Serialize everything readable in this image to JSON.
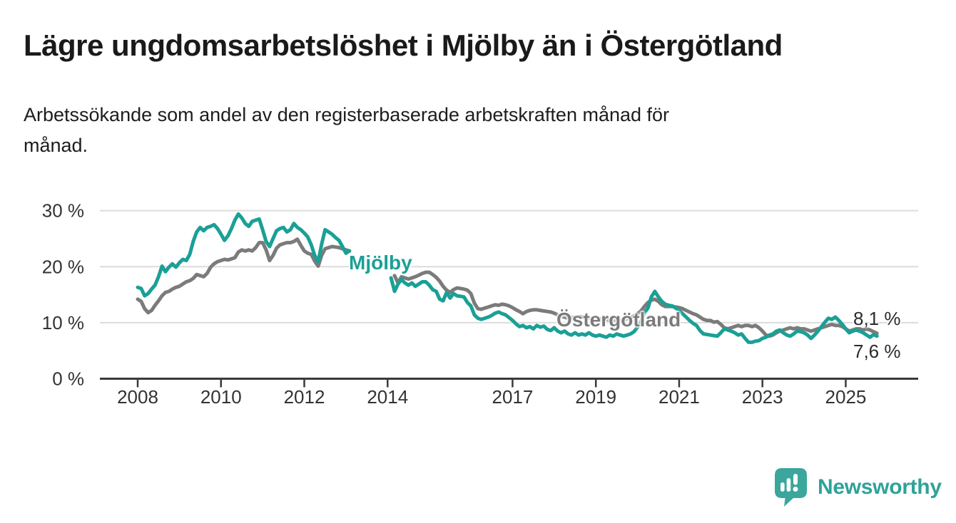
{
  "header": {
    "title": "Lägre ungdomsarbetslöshet i Mjölby än i Östergötland",
    "subtitle_full": "Arbetssökande som andel av den registerbaserade arbetskraften månad för månad.",
    "subtitle_lines": {
      "line1": "Arbetssökande som andel av den registerbaserade arbetskraften månad för",
      "line2": "månad."
    }
  },
  "chart_data": {
    "type": "line",
    "title": "Lägre ungdomsarbetslöshet i Mjölby än i Östergötland",
    "unit": "%",
    "x_axis": {
      "ticks": [
        2008,
        2010,
        2012,
        2014,
        2017,
        2019,
        2021,
        2023,
        2025
      ],
      "range": [
        2007.1,
        2026.7
      ],
      "grid": false
    },
    "y_axis": {
      "ticks": [
        {
          "value": 0,
          "label": "0 %"
        },
        {
          "value": 10,
          "label": "10 %"
        },
        {
          "value": 20,
          "label": "20 %"
        },
        {
          "value": 30,
          "label": "30 %"
        }
      ],
      "range": [
        0,
        31.5
      ],
      "grid": true
    },
    "colors": {
      "mjolby": "#1aa096",
      "ostergotland": "#7b7b7b",
      "axis": "#3a3a3a",
      "grid": "#dcdcdc"
    },
    "series": [
      {
        "name": "Östergötland",
        "color": "#7b7b7b",
        "final_value": 8.1,
        "final_label": "8,1 %",
        "segments": [
          {
            "start_year": 2008,
            "start_month": 1,
            "monthly_values": [
              14.2,
              13.8,
              12.5,
              11.8,
              12.2,
              13.1,
              13.9,
              14.8,
              15.4,
              15.6,
              16.0,
              16.3,
              16.5,
              16.9,
              17.3,
              17.5,
              17.9,
              18.6,
              18.4,
              18.2,
              18.8,
              19.9,
              20.5,
              20.9,
              21.1,
              21.3,
              21.2,
              21.4,
              21.6,
              22.6,
              23.0,
              22.8,
              23.0,
              22.8,
              23.4,
              24.3,
              24.3,
              23.0,
              21.1,
              22.0,
              23.3,
              23.9,
              24.1,
              24.3,
              24.3,
              24.5,
              24.9,
              23.8,
              22.8,
              22.4,
              22.2,
              21.0,
              20.1,
              22.0,
              23.2,
              23.4,
              23.6,
              23.5,
              23.4,
              23.2,
              23.0,
              22.8
            ]
          },
          {
            "start_year": 2014,
            "start_month": 3,
            "monthly_values": [
              18.4,
              17.1,
              18.2,
              18.0,
              17.8,
              18.0,
              18.2,
              18.5,
              18.8,
              19.0,
              19.0,
              18.6,
              18.1,
              17.4,
              16.5,
              15.8,
              15.4,
              15.9,
              16.2,
              16.1,
              16.0,
              15.8,
              15.2,
              13.5,
              12.5,
              12.4,
              12.6,
              12.8,
              13.0,
              13.2,
              13.1,
              13.3,
              13.2,
              13.0,
              12.7,
              12.3,
              12.0,
              11.6,
              12.0,
              12.2,
              12.3,
              12.3,
              12.2,
              12.1,
              12.0,
              11.9,
              11.7,
              11.4,
              11.1,
              11.0,
              10.8,
              10.9,
              11.0,
              11.1,
              11.0,
              10.9,
              10.8,
              10.8,
              10.9,
              10.7,
              10.5,
              10.6,
              10.4,
              10.5,
              10.3,
              10.4,
              10.5,
              10.7,
              10.9,
              11.2,
              11.6,
              12.1,
              12.9,
              13.6,
              14.0,
              14.2,
              13.8,
              13.2,
              12.9,
              12.9,
              12.9,
              12.8,
              12.7,
              12.5,
              12.2,
              11.9,
              11.6,
              11.4,
              11.0,
              10.6,
              10.4,
              10.4,
              10.1,
              10.2,
              9.7,
              9.1,
              8.9,
              9.1,
              9.3,
              9.5,
              9.3,
              9.5,
              9.5,
              9.3,
              9.5,
              9.1,
              8.5,
              7.8,
              7.6,
              7.8,
              8.2,
              8.5,
              8.7,
              8.9,
              9.1,
              8.9,
              9.1,
              8.9,
              8.9,
              8.7,
              8.5,
              8.7,
              8.9,
              9.1,
              9.3,
              9.5,
              9.7,
              9.5,
              9.5,
              9.3,
              8.9,
              8.5,
              8.7,
              8.9,
              8.9,
              8.7,
              8.9,
              8.7,
              8.4,
              8.1
            ]
          }
        ]
      },
      {
        "name": "Mjölby",
        "color": "#1aa096",
        "final_value": 7.6,
        "final_label": "7,6 %",
        "segments": [
          {
            "start_year": 2008,
            "start_month": 1,
            "monthly_values": [
              16.3,
              16.1,
              14.8,
              15.2,
              16.0,
              16.7,
              18.2,
              20.1,
              19.1,
              19.9,
              20.5,
              19.9,
              20.7,
              21.3,
              21.1,
              22.2,
              24.5,
              26.2,
              27.0,
              26.4,
              27.0,
              27.2,
              27.5,
              26.8,
              25.8,
              24.7,
              25.5,
              26.8,
              28.3,
              29.4,
              28.7,
              27.7,
              27.2,
              28.1,
              28.3,
              28.5,
              26.6,
              24.5,
              23.6,
              25.0,
              26.4,
              26.8,
              27.0,
              26.2,
              26.6,
              27.7,
              27.0,
              26.6,
              26.0,
              25.3,
              23.9,
              22.0,
              20.9,
              24.0,
              26.6,
              26.2,
              25.8,
              25.2,
              24.7,
              23.6,
              22.4,
              22.8
            ]
          },
          {
            "start_year": 2014,
            "start_month": 2,
            "monthly_values": [
              18.0,
              15.6,
              16.9,
              17.7,
              17.1,
              16.7,
              17.1,
              16.5,
              16.9,
              17.3,
              17.3,
              16.7,
              15.9,
              15.6,
              14.2,
              13.9,
              15.4,
              14.4,
              15.2,
              14.8,
              14.7,
              14.6,
              13.6,
              13.0,
              11.4,
              10.8,
              10.6,
              10.8,
              11.0,
              11.3,
              11.7,
              11.9,
              11.6,
              11.4,
              10.9,
              10.4,
              9.8,
              9.3,
              9.5,
              9.1,
              9.3,
              8.9,
              9.5,
              9.2,
              9.4,
              8.8,
              8.6,
              9.1,
              8.5,
              8.2,
              8.5,
              8.0,
              7.8,
              8.2,
              7.8,
              8.0,
              7.8,
              8.2,
              7.8,
              7.6,
              7.8,
              7.6,
              7.4,
              7.8,
              7.6,
              8.0,
              7.8,
              7.6,
              7.8,
              8.0,
              8.4,
              9.2,
              10.2,
              11.8,
              12.6,
              14.6,
              15.6,
              14.6,
              13.8,
              13.3,
              13.1,
              13.0,
              12.6,
              12.2,
              11.6,
              11.0,
              10.4,
              9.9,
              9.5,
              8.6,
              8.0,
              7.9,
              7.8,
              7.7,
              7.6,
              8.2,
              8.9,
              8.7,
              8.5,
              8.2,
              7.8,
              8.0,
              7.2,
              6.5,
              6.5,
              6.7,
              6.8,
              7.2,
              7.4,
              7.8,
              8.0,
              8.5,
              8.7,
              8.2,
              7.8,
              7.6,
              8.0,
              8.5,
              8.4,
              8.2,
              7.8,
              7.2,
              7.8,
              8.5,
              9.3,
              10.1,
              10.8,
              10.6,
              11.0,
              10.4,
              9.7,
              8.9,
              8.2,
              8.5,
              8.7,
              8.5,
              8.2,
              7.8,
              7.4,
              7.9,
              7.6
            ]
          }
        ]
      }
    ],
    "annotations": {
      "mjolby_label": "Mjölby",
      "ostergotland_label": "Östergötland",
      "end_label_top": "8,1 %",
      "end_label_bottom": "7,6 %"
    },
    "legend_position": "inline-labels"
  },
  "footer": {
    "brand": "Newsworthy",
    "brand_color": "#2fa299"
  }
}
